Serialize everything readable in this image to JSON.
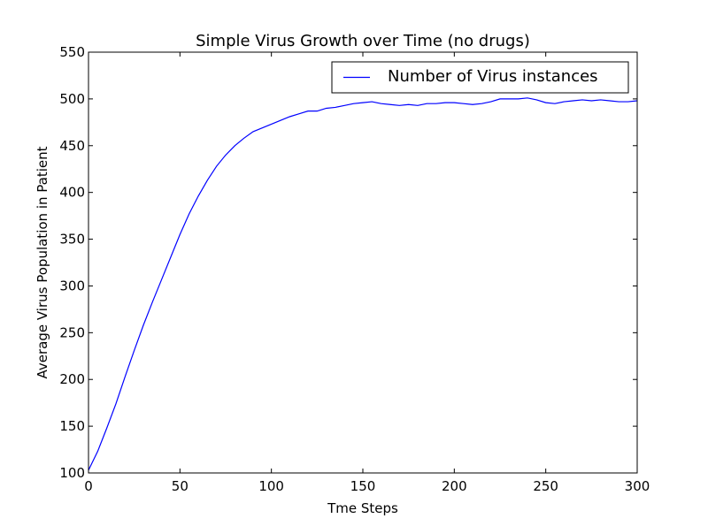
{
  "chart_data": {
    "type": "line",
    "title": "Simple Virus Growth over Time (no drugs)",
    "xlabel": "Tme Steps",
    "ylabel": "Average Virus Population in Patient",
    "xlim": [
      0,
      300
    ],
    "ylim": [
      100,
      550
    ],
    "xticks": [
      0,
      50,
      100,
      150,
      200,
      250,
      300
    ],
    "yticks": [
      100,
      150,
      200,
      250,
      300,
      350,
      400,
      450,
      500,
      550
    ],
    "grid": false,
    "legend_position": "top-right",
    "series": [
      {
        "name": "Number of Virus instances",
        "color": "#0000ff",
        "x": [
          0,
          5,
          10,
          15,
          20,
          25,
          30,
          35,
          40,
          45,
          50,
          55,
          60,
          65,
          70,
          75,
          80,
          85,
          90,
          95,
          100,
          105,
          110,
          115,
          120,
          125,
          130,
          135,
          140,
          145,
          150,
          155,
          160,
          165,
          170,
          175,
          180,
          185,
          190,
          195,
          200,
          205,
          210,
          215,
          220,
          225,
          230,
          235,
          240,
          245,
          250,
          255,
          260,
          265,
          270,
          275,
          280,
          285,
          290,
          295,
          300
        ],
        "y": [
          103,
          123,
          148,
          174,
          203,
          231,
          258,
          283,
          307,
          331,
          355,
          377,
          396,
          413,
          428,
          440,
          450,
          458,
          465,
          469,
          473,
          477,
          481,
          484,
          487,
          487,
          490,
          491,
          493,
          495,
          496,
          497,
          495,
          494,
          493,
          494,
          493,
          495,
          495,
          496,
          496,
          495,
          494,
          495,
          497,
          500,
          500,
          500,
          501,
          499,
          496,
          495,
          497,
          498,
          499,
          498,
          499,
          498,
          497,
          497,
          498
        ]
      }
    ]
  }
}
